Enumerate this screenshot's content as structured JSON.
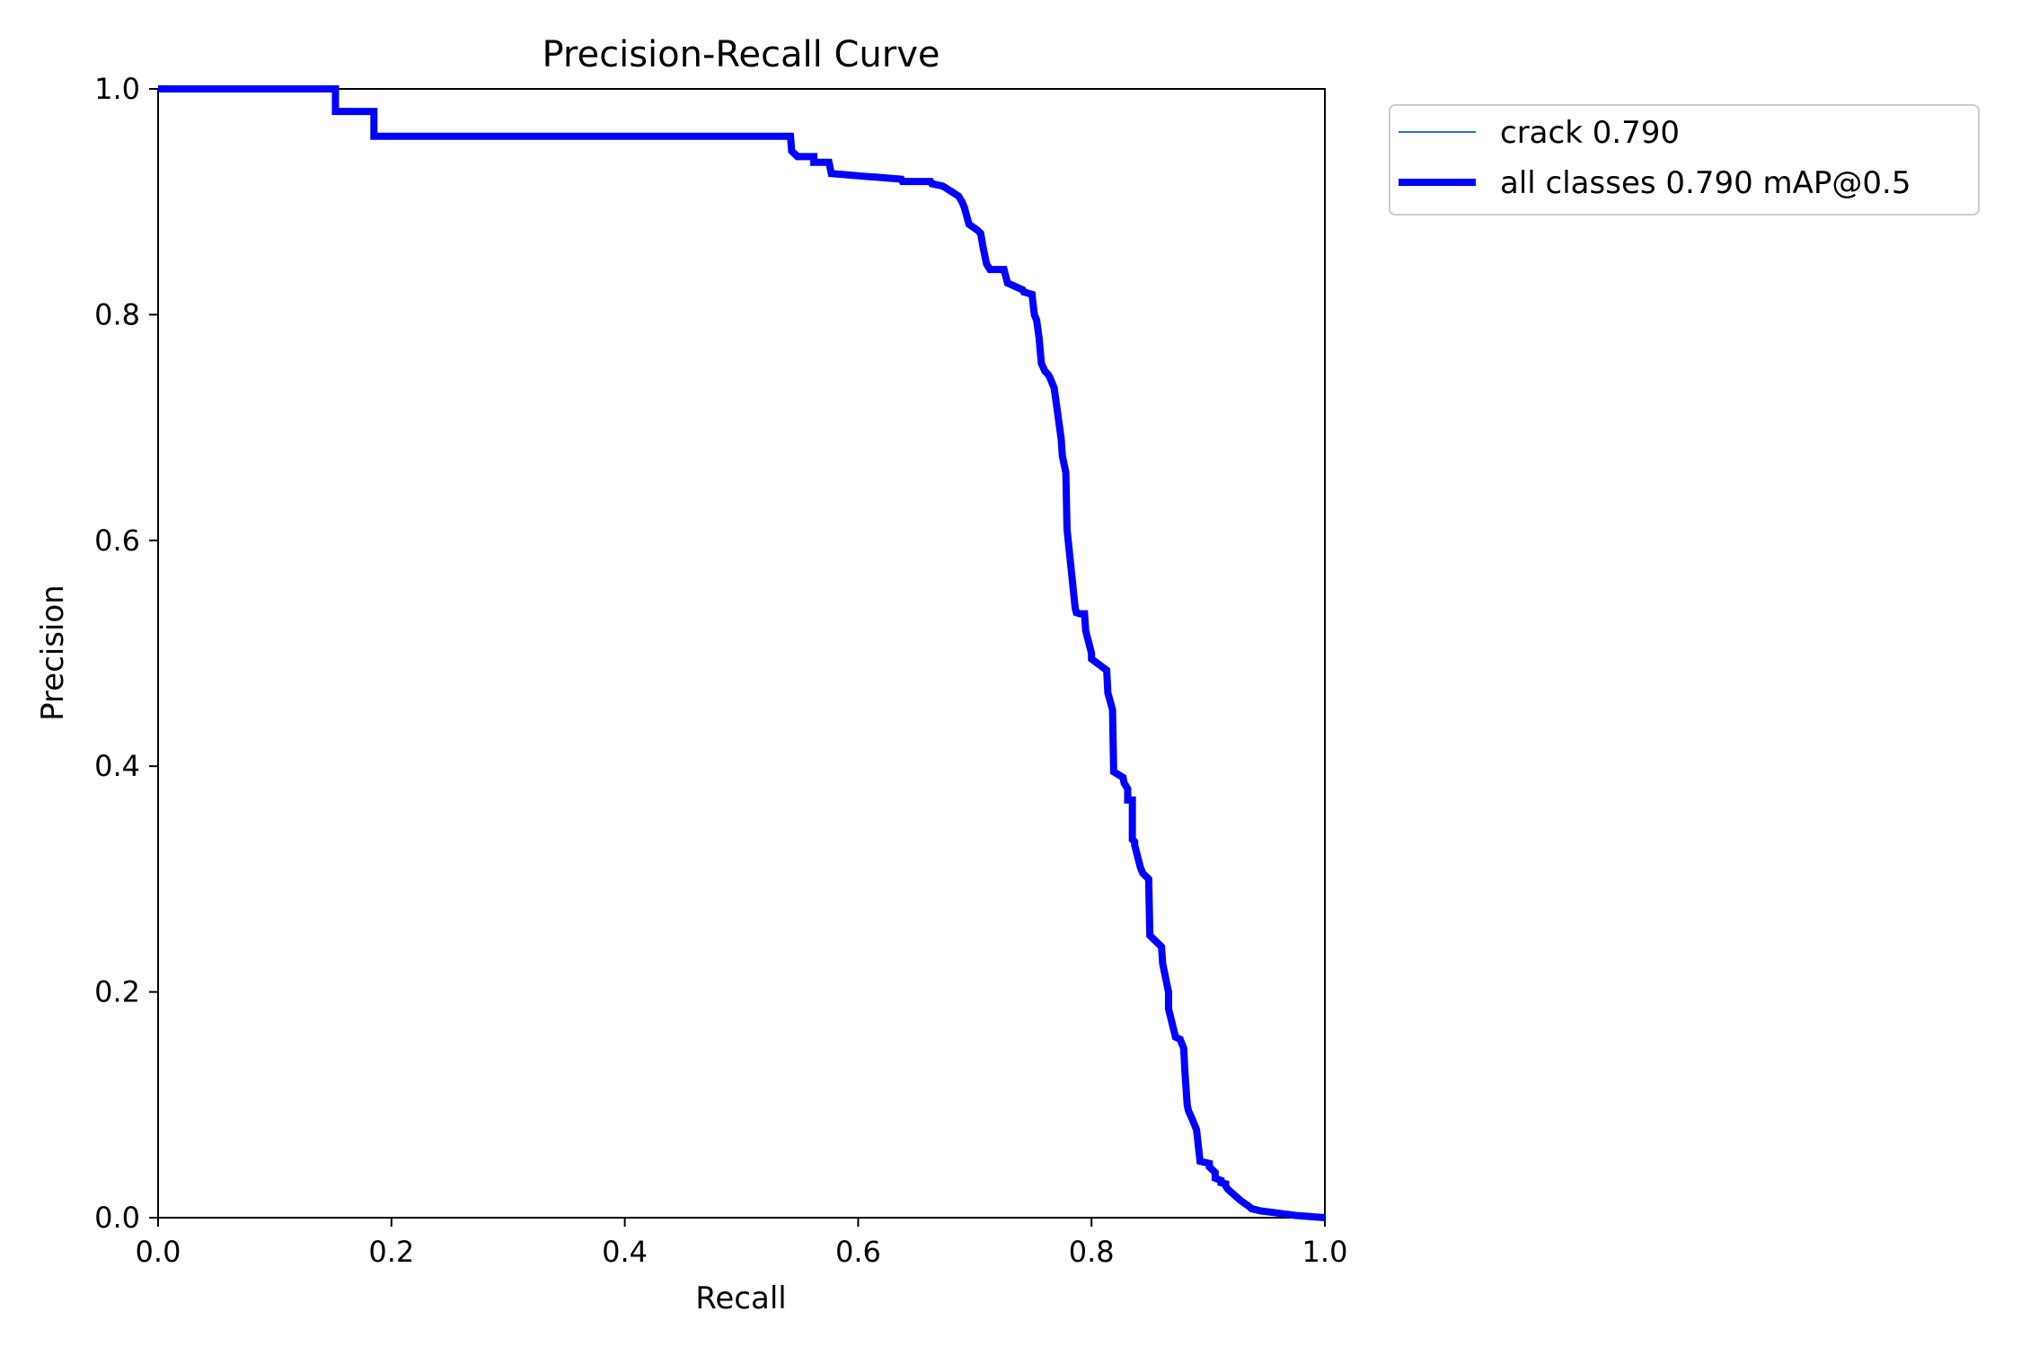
{
  "chart_data": {
    "type": "line",
    "title": "Precision-Recall Curve",
    "xlabel": "Recall",
    "ylabel": "Precision",
    "xlim": [
      0,
      1
    ],
    "ylim": [
      0,
      1
    ],
    "grid": false,
    "legend_placement": "outside-top-right",
    "x_ticks": [
      "0.0",
      "0.2",
      "0.4",
      "0.6",
      "0.8",
      "1.0"
    ],
    "y_ticks": [
      "0.0",
      "0.2",
      "0.4",
      "0.6",
      "0.8",
      "1.0"
    ],
    "series": [
      {
        "name": "crack 0.790",
        "color": "#1f77b4",
        "style": "thin",
        "x": [
          0.0,
          0.152,
          0.152,
          0.185,
          0.185,
          0.542,
          0.543,
          0.548,
          0.562,
          0.562,
          0.575,
          0.577,
          0.612,
          0.613,
          0.637,
          0.638,
          0.662,
          0.663,
          0.672,
          0.674,
          0.686,
          0.689,
          0.691,
          0.695,
          0.702,
          0.705,
          0.707,
          0.71,
          0.713,
          0.725,
          0.728,
          0.741,
          0.742,
          0.749,
          0.751,
          0.753,
          0.755,
          0.757,
          0.76,
          0.762,
          0.764,
          0.766,
          0.768,
          0.77,
          0.774,
          0.775,
          0.778,
          0.779,
          0.783,
          0.786,
          0.787,
          0.79,
          0.791,
          0.794,
          0.795,
          0.8,
          0.8,
          0.813,
          0.814,
          0.818,
          0.819,
          0.827,
          0.828,
          0.831,
          0.831,
          0.835,
          0.835,
          0.837,
          0.837,
          0.842,
          0.844,
          0.849,
          0.85,
          0.86,
          0.861,
          0.866,
          0.866,
          0.872,
          0.876,
          0.879,
          0.88,
          0.882,
          0.883,
          0.886,
          0.888,
          0.89,
          0.893,
          0.901,
          0.901,
          0.906,
          0.906,
          0.911,
          0.911,
          0.915,
          0.915,
          0.917,
          0.928,
          0.935,
          0.937,
          0.945,
          0.96,
          0.975,
          1.0
        ],
        "y": [
          1.0,
          1.0,
          0.98,
          0.98,
          0.958,
          0.958,
          0.945,
          0.94,
          0.94,
          0.935,
          0.935,
          0.925,
          0.922,
          0.922,
          0.92,
          0.918,
          0.918,
          0.916,
          0.914,
          0.913,
          0.905,
          0.9,
          0.895,
          0.88,
          0.875,
          0.872,
          0.86,
          0.845,
          0.84,
          0.84,
          0.828,
          0.822,
          0.82,
          0.818,
          0.8,
          0.795,
          0.78,
          0.757,
          0.75,
          0.748,
          0.745,
          0.74,
          0.735,
          0.72,
          0.69,
          0.675,
          0.66,
          0.61,
          0.57,
          0.54,
          0.536,
          0.535,
          0.535,
          0.535,
          0.52,
          0.5,
          0.495,
          0.485,
          0.465,
          0.45,
          0.395,
          0.39,
          0.385,
          0.38,
          0.37,
          0.37,
          0.335,
          0.333,
          0.33,
          0.31,
          0.305,
          0.3,
          0.25,
          0.24,
          0.225,
          0.2,
          0.185,
          0.16,
          0.158,
          0.15,
          0.13,
          0.1,
          0.095,
          0.088,
          0.083,
          0.078,
          0.05,
          0.048,
          0.045,
          0.04,
          0.035,
          0.033,
          0.031,
          0.03,
          0.028,
          0.025,
          0.015,
          0.01,
          0.008,
          0.006,
          0.004,
          0.002,
          0.0
        ]
      },
      {
        "name": "all classes 0.790 mAP@0.5",
        "color": "#0000ff",
        "style": "thick",
        "x": [
          0.0,
          0.152,
          0.152,
          0.185,
          0.185,
          0.542,
          0.543,
          0.548,
          0.562,
          0.562,
          0.575,
          0.577,
          0.612,
          0.613,
          0.637,
          0.638,
          0.662,
          0.663,
          0.672,
          0.674,
          0.686,
          0.689,
          0.691,
          0.695,
          0.702,
          0.705,
          0.707,
          0.71,
          0.713,
          0.725,
          0.728,
          0.741,
          0.742,
          0.749,
          0.751,
          0.753,
          0.755,
          0.757,
          0.76,
          0.762,
          0.764,
          0.766,
          0.768,
          0.77,
          0.774,
          0.775,
          0.778,
          0.779,
          0.783,
          0.786,
          0.787,
          0.79,
          0.791,
          0.794,
          0.795,
          0.8,
          0.8,
          0.813,
          0.814,
          0.818,
          0.819,
          0.827,
          0.828,
          0.831,
          0.831,
          0.835,
          0.835,
          0.837,
          0.837,
          0.842,
          0.844,
          0.849,
          0.85,
          0.86,
          0.861,
          0.866,
          0.866,
          0.872,
          0.876,
          0.879,
          0.88,
          0.882,
          0.883,
          0.886,
          0.888,
          0.89,
          0.893,
          0.901,
          0.901,
          0.906,
          0.906,
          0.911,
          0.911,
          0.915,
          0.915,
          0.917,
          0.928,
          0.935,
          0.937,
          0.945,
          0.96,
          0.975,
          1.0
        ],
        "y": [
          1.0,
          1.0,
          0.98,
          0.98,
          0.958,
          0.958,
          0.945,
          0.94,
          0.94,
          0.935,
          0.935,
          0.925,
          0.922,
          0.922,
          0.92,
          0.918,
          0.918,
          0.916,
          0.914,
          0.913,
          0.905,
          0.9,
          0.895,
          0.88,
          0.875,
          0.872,
          0.86,
          0.845,
          0.84,
          0.84,
          0.828,
          0.822,
          0.82,
          0.818,
          0.8,
          0.795,
          0.78,
          0.757,
          0.75,
          0.748,
          0.745,
          0.74,
          0.735,
          0.72,
          0.69,
          0.675,
          0.66,
          0.61,
          0.57,
          0.54,
          0.536,
          0.535,
          0.535,
          0.535,
          0.52,
          0.5,
          0.495,
          0.485,
          0.465,
          0.45,
          0.395,
          0.39,
          0.385,
          0.38,
          0.37,
          0.37,
          0.335,
          0.333,
          0.33,
          0.31,
          0.305,
          0.3,
          0.25,
          0.24,
          0.225,
          0.2,
          0.185,
          0.16,
          0.158,
          0.15,
          0.13,
          0.1,
          0.095,
          0.088,
          0.083,
          0.078,
          0.05,
          0.048,
          0.045,
          0.04,
          0.035,
          0.033,
          0.031,
          0.03,
          0.028,
          0.025,
          0.015,
          0.01,
          0.008,
          0.006,
          0.004,
          0.002,
          0.0
        ]
      }
    ]
  }
}
